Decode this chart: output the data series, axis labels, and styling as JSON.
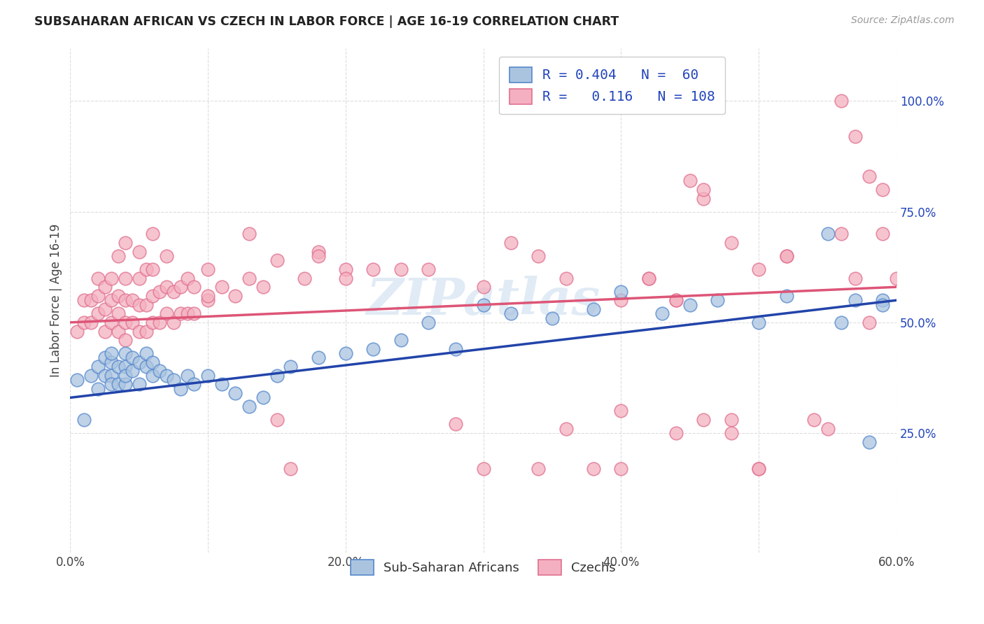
{
  "title": "SUBSAHARAN AFRICAN VS CZECH IN LABOR FORCE | AGE 16-19 CORRELATION CHART",
  "source": "Source: ZipAtlas.com",
  "ylabel": "In Labor Force | Age 16-19",
  "xlim": [
    0.0,
    0.6
  ],
  "ylim": [
    -0.02,
    1.12
  ],
  "xtick_vals": [
    0.0,
    0.1,
    0.2,
    0.3,
    0.4,
    0.5,
    0.6
  ],
  "xtick_labels": [
    "0.0%",
    "",
    "20.0%",
    "",
    "40.0%",
    "",
    "60.0%"
  ],
  "ytick_vals": [
    0.25,
    0.5,
    0.75,
    1.0
  ],
  "ytick_labels": [
    "25.0%",
    "50.0%",
    "75.0%",
    "100.0%"
  ],
  "blue_color": "#aac4e0",
  "pink_color": "#f4b0c0",
  "blue_edge_color": "#5588cc",
  "pink_edge_color": "#e07090",
  "blue_line_color": "#2244aa",
  "pink_line_color": "#dd5577",
  "legend_text_color": "#2244bb",
  "blue_R": 0.404,
  "blue_N": 60,
  "pink_R": 0.116,
  "pink_N": 108,
  "watermark": "ZIPatlas",
  "blue_scatter_x": [
    0.005,
    0.01,
    0.015,
    0.02,
    0.02,
    0.025,
    0.025,
    0.03,
    0.03,
    0.03,
    0.03,
    0.035,
    0.035,
    0.04,
    0.04,
    0.04,
    0.04,
    0.045,
    0.045,
    0.05,
    0.05,
    0.055,
    0.055,
    0.06,
    0.06,
    0.065,
    0.07,
    0.075,
    0.08,
    0.085,
    0.09,
    0.1,
    0.11,
    0.12,
    0.13,
    0.14,
    0.15,
    0.16,
    0.18,
    0.2,
    0.22,
    0.24,
    0.26,
    0.28,
    0.3,
    0.32,
    0.35,
    0.38,
    0.4,
    0.43,
    0.45,
    0.47,
    0.5,
    0.52,
    0.55,
    0.56,
    0.57,
    0.58,
    0.59,
    0.59
  ],
  "blue_scatter_y": [
    0.37,
    0.28,
    0.38,
    0.4,
    0.35,
    0.42,
    0.38,
    0.41,
    0.38,
    0.43,
    0.36,
    0.4,
    0.36,
    0.43,
    0.4,
    0.36,
    0.38,
    0.42,
    0.39,
    0.41,
    0.36,
    0.4,
    0.43,
    0.38,
    0.41,
    0.39,
    0.38,
    0.37,
    0.35,
    0.38,
    0.36,
    0.38,
    0.36,
    0.34,
    0.31,
    0.33,
    0.38,
    0.4,
    0.42,
    0.43,
    0.44,
    0.46,
    0.5,
    0.44,
    0.54,
    0.52,
    0.51,
    0.53,
    0.57,
    0.52,
    0.54,
    0.55,
    0.5,
    0.56,
    0.7,
    0.5,
    0.55,
    0.23,
    0.55,
    0.54
  ],
  "pink_scatter_x": [
    0.005,
    0.01,
    0.01,
    0.015,
    0.015,
    0.02,
    0.02,
    0.02,
    0.025,
    0.025,
    0.025,
    0.03,
    0.03,
    0.03,
    0.035,
    0.035,
    0.035,
    0.035,
    0.04,
    0.04,
    0.04,
    0.04,
    0.04,
    0.045,
    0.045,
    0.05,
    0.05,
    0.05,
    0.05,
    0.055,
    0.055,
    0.055,
    0.06,
    0.06,
    0.06,
    0.06,
    0.065,
    0.065,
    0.07,
    0.07,
    0.07,
    0.075,
    0.075,
    0.08,
    0.08,
    0.085,
    0.085,
    0.09,
    0.09,
    0.1,
    0.1,
    0.11,
    0.12,
    0.13,
    0.14,
    0.15,
    0.17,
    0.18,
    0.2,
    0.22,
    0.24,
    0.26,
    0.28,
    0.3,
    0.32,
    0.34,
    0.36,
    0.38,
    0.4,
    0.4,
    0.42,
    0.44,
    0.46,
    0.48,
    0.5,
    0.52,
    0.54,
    0.56,
    0.58,
    0.59,
    0.56,
    0.1,
    0.13,
    0.15,
    0.16,
    0.18,
    0.2,
    0.3,
    0.34,
    0.36,
    0.4,
    0.42,
    0.44,
    0.45,
    0.46,
    0.48,
    0.5,
    0.52,
    0.55,
    0.57,
    0.57,
    0.58,
    0.59,
    0.6,
    0.44,
    0.46,
    0.48,
    0.5
  ],
  "pink_scatter_y": [
    0.48,
    0.5,
    0.55,
    0.5,
    0.55,
    0.52,
    0.56,
    0.6,
    0.48,
    0.53,
    0.58,
    0.5,
    0.55,
    0.6,
    0.48,
    0.52,
    0.56,
    0.65,
    0.46,
    0.5,
    0.55,
    0.6,
    0.68,
    0.5,
    0.55,
    0.48,
    0.54,
    0.6,
    0.66,
    0.48,
    0.54,
    0.62,
    0.5,
    0.56,
    0.62,
    0.7,
    0.5,
    0.57,
    0.52,
    0.58,
    0.65,
    0.5,
    0.57,
    0.52,
    0.58,
    0.52,
    0.6,
    0.52,
    0.58,
    0.55,
    0.62,
    0.58,
    0.56,
    0.6,
    0.58,
    0.64,
    0.6,
    0.66,
    0.62,
    0.62,
    0.62,
    0.62,
    0.27,
    0.58,
    0.68,
    0.17,
    0.6,
    0.17,
    0.3,
    0.55,
    0.6,
    0.55,
    0.28,
    0.68,
    0.17,
    0.65,
    0.28,
    0.7,
    0.83,
    0.8,
    1.0,
    0.56,
    0.7,
    0.28,
    0.17,
    0.65,
    0.6,
    0.17,
    0.65,
    0.26,
    0.17,
    0.6,
    0.25,
    0.82,
    0.78,
    0.28,
    0.17,
    0.65,
    0.26,
    0.6,
    0.92,
    0.5,
    0.7,
    0.6,
    0.55,
    0.8,
    0.25,
    0.62
  ]
}
